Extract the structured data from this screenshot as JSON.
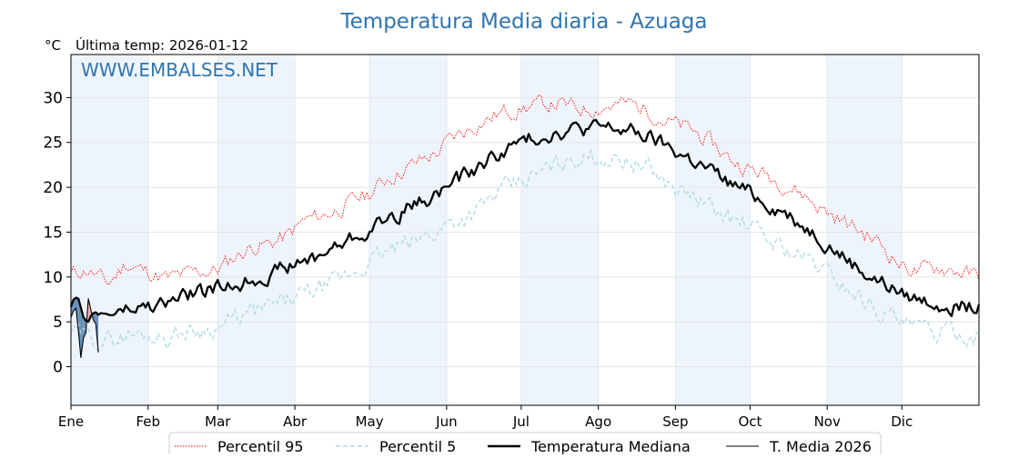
{
  "header": {
    "title": "Temperatura Media diaria - Azuaga",
    "unit": "°C",
    "last_temp": "Última temp: 2026-01-12",
    "watermark": "WWW.EMBALSES.NET"
  },
  "legend": {
    "p95": "Percentil 95",
    "p5": "Percentil 5",
    "median": "Temperatura Mediana",
    "current": "T. Media 2026"
  },
  "chart_data": {
    "type": "line",
    "title": "Temperatura Media diaria - Azuaga",
    "ylabel": "°C",
    "xlabel": "",
    "xlim": [
      1,
      366
    ],
    "ylim": [
      -4.3,
      34.8
    ],
    "grid": true,
    "legend_position": "bottom",
    "x_ticks": [
      {
        "label": "Ene",
        "day": 1
      },
      {
        "label": "Feb",
        "day": 32
      },
      {
        "label": "Mar",
        "day": 60
      },
      {
        "label": "Abr",
        "day": 91
      },
      {
        "label": "May",
        "day": 121
      },
      {
        "label": "Jun",
        "day": 152
      },
      {
        "label": "Jul",
        "day": 182
      },
      {
        "label": "Ago",
        "day": 213
      },
      {
        "label": "Sep",
        "day": 244
      },
      {
        "label": "Oct",
        "day": 274
      },
      {
        "label": "Nov",
        "day": 305
      },
      {
        "label": "Dic",
        "day": 335
      }
    ],
    "y_ticks": [
      0,
      5,
      10,
      15,
      20,
      25,
      30
    ],
    "colors": {
      "p95": "#ff0000",
      "p5": "#add8e6",
      "median": "#000000",
      "current": "#000000",
      "above_fill": "#f4a6a6",
      "below_fill": "#4f7fb0",
      "band": "#eef4fb",
      "title": "#2e75b0"
    },
    "series": [
      {
        "name": "Percentil 95",
        "style": "dotted",
        "points": [
          [
            1,
            10.3
          ],
          [
            8,
            10.8
          ],
          [
            16,
            9.2
          ],
          [
            23,
            11.5
          ],
          [
            32,
            10.5
          ],
          [
            40,
            9.8
          ],
          [
            46,
            10.2
          ],
          [
            53,
            10.6
          ],
          [
            60,
            10.8
          ],
          [
            67,
            12.3
          ],
          [
            74,
            13.4
          ],
          [
            81,
            13.7
          ],
          [
            88,
            14.6
          ],
          [
            95,
            16.3
          ],
          [
            102,
            16.8
          ],
          [
            109,
            17.6
          ],
          [
            116,
            18.7
          ],
          [
            121,
            19.3
          ],
          [
            128,
            21.0
          ],
          [
            135,
            22.0
          ],
          [
            142,
            23.0
          ],
          [
            149,
            24.0
          ],
          [
            152,
            25.0
          ],
          [
            159,
            26.2
          ],
          [
            166,
            27.3
          ],
          [
            174,
            28.3
          ],
          [
            182,
            28.8
          ],
          [
            190,
            29.2
          ],
          [
            197,
            29.3
          ],
          [
            205,
            28.7
          ],
          [
            213,
            28.9
          ],
          [
            220,
            29.2
          ],
          [
            226,
            29.3
          ],
          [
            233,
            28.6
          ],
          [
            240,
            27.4
          ],
          [
            244,
            27.0
          ],
          [
            251,
            26.3
          ],
          [
            258,
            25.0
          ],
          [
            266,
            23.1
          ],
          [
            274,
            22.0
          ],
          [
            281,
            21.3
          ],
          [
            288,
            20.4
          ],
          [
            295,
            19.3
          ],
          [
            302,
            17.8
          ],
          [
            305,
            17.2
          ],
          [
            312,
            16.1
          ],
          [
            319,
            15.0
          ],
          [
            326,
            13.8
          ],
          [
            333,
            11.8
          ],
          [
            335,
            11.3
          ],
          [
            342,
            10.6
          ],
          [
            349,
            11.1
          ],
          [
            356,
            10.8
          ],
          [
            366,
            10.0
          ]
        ]
      },
      {
        "name": "Percentil 5",
        "style": "dashed",
        "points": [
          [
            1,
            4.0
          ],
          [
            8,
            3.2
          ],
          [
            16,
            3.0
          ],
          [
            23,
            3.5
          ],
          [
            32,
            3.6
          ],
          [
            40,
            3.3
          ],
          [
            46,
            3.8
          ],
          [
            53,
            4.1
          ],
          [
            60,
            4.5
          ],
          [
            67,
            5.2
          ],
          [
            74,
            6.1
          ],
          [
            81,
            6.6
          ],
          [
            88,
            7.3
          ],
          [
            95,
            8.0
          ],
          [
            102,
            8.7
          ],
          [
            109,
            9.6
          ],
          [
            116,
            10.8
          ],
          [
            121,
            11.6
          ],
          [
            128,
            12.8
          ],
          [
            135,
            13.5
          ],
          [
            142,
            14.3
          ],
          [
            149,
            15.3
          ],
          [
            152,
            16.0
          ],
          [
            159,
            16.6
          ],
          [
            166,
            17.8
          ],
          [
            174,
            19.6
          ],
          [
            182,
            20.5
          ],
          [
            190,
            21.6
          ],
          [
            197,
            22.6
          ],
          [
            205,
            23.3
          ],
          [
            213,
            23.4
          ],
          [
            220,
            23.2
          ],
          [
            226,
            23.0
          ],
          [
            233,
            22.1
          ],
          [
            240,
            20.6
          ],
          [
            244,
            19.8
          ],
          [
            251,
            19.0
          ],
          [
            258,
            17.6
          ],
          [
            266,
            16.5
          ],
          [
            274,
            15.6
          ],
          [
            281,
            14.2
          ],
          [
            288,
            13.2
          ],
          [
            295,
            12.2
          ],
          [
            302,
            11.2
          ],
          [
            305,
            10.5
          ],
          [
            312,
            9.1
          ],
          [
            319,
            7.6
          ],
          [
            326,
            6.4
          ],
          [
            333,
            5.4
          ],
          [
            335,
            4.6
          ],
          [
            342,
            4.2
          ],
          [
            349,
            3.8
          ],
          [
            356,
            3.8
          ],
          [
            366,
            3.5
          ]
        ]
      },
      {
        "name": "Temperatura Mediana",
        "style": "solid-thick",
        "points": [
          [
            1,
            7.3
          ],
          [
            8,
            5.6
          ],
          [
            16,
            5.9
          ],
          [
            23,
            6.2
          ],
          [
            32,
            6.6
          ],
          [
            40,
            7.1
          ],
          [
            46,
            7.8
          ],
          [
            53,
            8.4
          ],
          [
            60,
            8.7
          ],
          [
            67,
            9.2
          ],
          [
            74,
            9.8
          ],
          [
            81,
            10.4
          ],
          [
            88,
            11.1
          ],
          [
            95,
            11.7
          ],
          [
            102,
            12.6
          ],
          [
            109,
            13.6
          ],
          [
            116,
            14.6
          ],
          [
            121,
            15.2
          ],
          [
            128,
            16.5
          ],
          [
            135,
            17.4
          ],
          [
            142,
            18.5
          ],
          [
            149,
            19.4
          ],
          [
            152,
            20.1
          ],
          [
            159,
            21.2
          ],
          [
            166,
            22.5
          ],
          [
            174,
            24.0
          ],
          [
            182,
            25.0
          ],
          [
            190,
            25.8
          ],
          [
            197,
            26.3
          ],
          [
            205,
            26.5
          ],
          [
            213,
            26.6
          ],
          [
            220,
            26.5
          ],
          [
            226,
            26.2
          ],
          [
            233,
            25.6
          ],
          [
            240,
            24.6
          ],
          [
            244,
            24.0
          ],
          [
            251,
            23.0
          ],
          [
            258,
            21.8
          ],
          [
            266,
            20.4
          ],
          [
            274,
            19.3
          ],
          [
            281,
            18.3
          ],
          [
            288,
            17.2
          ],
          [
            295,
            15.9
          ],
          [
            302,
            14.5
          ],
          [
            305,
            13.8
          ],
          [
            312,
            12.2
          ],
          [
            319,
            10.7
          ],
          [
            326,
            9.5
          ],
          [
            333,
            8.5
          ],
          [
            335,
            8.0
          ],
          [
            342,
            7.5
          ],
          [
            349,
            7.2
          ],
          [
            356,
            6.9
          ],
          [
            366,
            6.5
          ]
        ]
      },
      {
        "name": "T. Media 2026",
        "style": "solid-thin",
        "points": [
          [
            1,
            5.5
          ],
          [
            2,
            6.2
          ],
          [
            3,
            6.5
          ],
          [
            4,
            4.0
          ],
          [
            5,
            1.0
          ],
          [
            6,
            3.2
          ],
          [
            7,
            3.8
          ],
          [
            8,
            7.6
          ],
          [
            9,
            6.3
          ],
          [
            10,
            5.2
          ],
          [
            11,
            4.8
          ],
          [
            12,
            1.6
          ]
        ]
      }
    ]
  }
}
